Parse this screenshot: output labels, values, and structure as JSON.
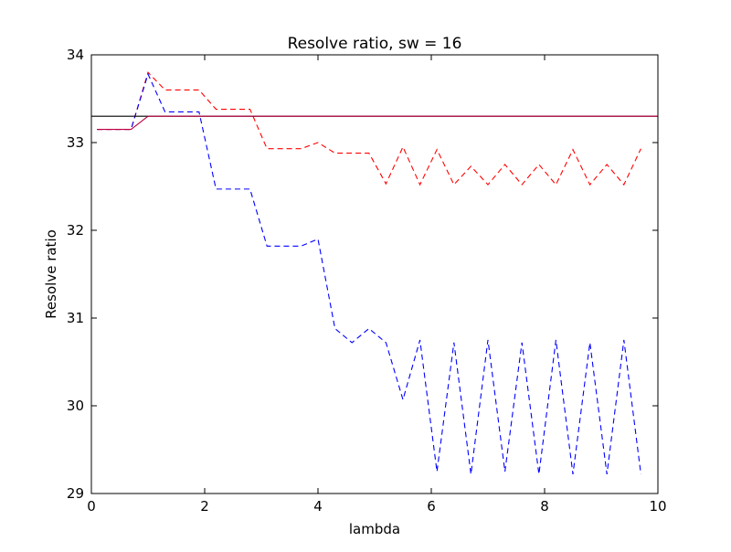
{
  "chart_data": {
    "type": "line",
    "title": "Resolve ratio, sw = 16",
    "xlabel": "lambda",
    "ylabel": "Resolve ratio",
    "xlim": [
      0,
      10
    ],
    "ylim": [
      29,
      34
    ],
    "xticks": [
      0,
      2,
      4,
      6,
      8,
      10
    ],
    "yticks": [
      29,
      30,
      31,
      32,
      33,
      34
    ],
    "grid": false,
    "series": [
      {
        "color": "#ff0000",
        "dash": true,
        "x": [
          0.1,
          0.4,
          0.7,
          1.0,
          1.3,
          1.6,
          1.9,
          2.2,
          2.5,
          2.8,
          3.1,
          3.4,
          3.7,
          4.0,
          4.3,
          4.6,
          4.9,
          5.2,
          5.5,
          5.8,
          6.1,
          6.4,
          6.7,
          7.0,
          7.3,
          7.6,
          7.9,
          8.2,
          8.5,
          8.8,
          9.1,
          9.4,
          9.7
        ],
        "y": [
          33.15,
          33.15,
          33.15,
          33.8,
          33.6,
          33.6,
          33.6,
          33.38,
          33.38,
          33.38,
          32.93,
          32.93,
          32.93,
          33.0,
          32.88,
          32.88,
          32.88,
          32.53,
          32.95,
          32.52,
          32.92,
          32.52,
          32.73,
          32.52,
          32.75,
          32.52,
          32.75,
          32.52,
          32.92,
          32.52,
          32.75,
          32.52,
          32.93
        ]
      },
      {
        "color": "#0000ff",
        "dash": true,
        "x": [
          0.1,
          0.4,
          0.7,
          1.0,
          1.3,
          1.6,
          1.9,
          2.2,
          2.5,
          2.8,
          3.1,
          3.4,
          3.7,
          4.0,
          4.3,
          4.6,
          4.9,
          5.2,
          5.5,
          5.8,
          6.1,
          6.4,
          6.7,
          7.0,
          7.3,
          7.6,
          7.9,
          8.2,
          8.5,
          8.8,
          9.1,
          9.4,
          9.7
        ],
        "y": [
          33.15,
          33.15,
          33.15,
          33.78,
          33.35,
          33.35,
          33.35,
          32.47,
          32.47,
          32.47,
          31.82,
          31.82,
          31.82,
          31.9,
          30.88,
          30.72,
          30.88,
          30.72,
          30.07,
          30.75,
          29.25,
          30.72,
          29.22,
          30.75,
          29.25,
          30.72,
          29.22,
          30.75,
          29.22,
          30.72,
          29.22,
          30.75,
          29.22
        ]
      },
      {
        "color": "#000000",
        "dash": false,
        "x": [
          0,
          10
        ],
        "y": [
          33.3,
          33.3
        ]
      },
      {
        "color": "#bf0040",
        "dash": false,
        "x": [
          0.1,
          0.4,
          0.7,
          1.0,
          10.0
        ],
        "y": [
          33.15,
          33.15,
          33.15,
          33.3,
          33.3
        ]
      }
    ]
  }
}
